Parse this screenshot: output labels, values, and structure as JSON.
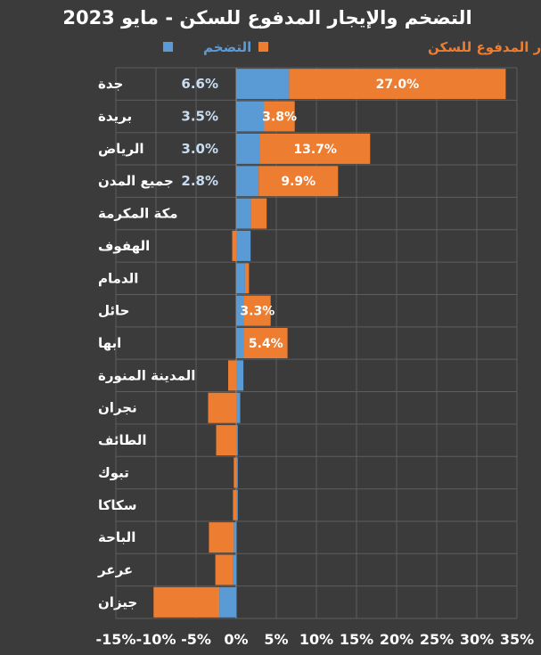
{
  "chart_data": {
    "type": "bar",
    "orientation": "horizontal",
    "stacked": true,
    "title": "التضخم والإيجار المدفوع للسكن - مايو 2023",
    "categories": [
      "جدة",
      "بريدة",
      "الرياض",
      "جميع المدن",
      "مكة المكرمة",
      "الهفوف",
      "الدمام",
      "حائل",
      "ابها",
      "المدينة المنورة",
      "نجران",
      "الطائف",
      "تبوك",
      "سكاكا",
      "الباحة",
      "عرعر",
      "جيزان"
    ],
    "series": [
      {
        "name": "التضخم",
        "color": "#5b9bd5",
        "values": [
          6.6,
          3.5,
          3.0,
          2.8,
          1.8,
          1.8,
          1.1,
          1.0,
          1.0,
          0.9,
          0.5,
          0.2,
          0.2,
          0.2,
          -0.3,
          -0.4,
          -2.1
        ],
        "labels": [
          "6.6%",
          "3.5%",
          "3.0%",
          "2.8%",
          "",
          "",
          "",
          "",
          "",
          "",
          "",
          "",
          "",
          "",
          "",
          "",
          ""
        ]
      },
      {
        "name": "الإيجار المدفوع للسكن",
        "color": "#ed7d31",
        "values": [
          27.0,
          3.8,
          13.7,
          9.9,
          2.0,
          -0.5,
          0.5,
          3.3,
          5.4,
          -1.0,
          -3.5,
          -2.5,
          -0.3,
          -0.4,
          -3.1,
          -2.2,
          -8.2
        ],
        "labels": [
          "27.0%",
          "3.8%",
          "13.7%",
          "9.9%",
          "",
          "",
          "",
          "3.3%",
          "5.4%",
          "",
          "",
          "",
          "",
          "",
          "",
          "",
          ""
        ]
      }
    ],
    "xlim": [
      -15,
      35
    ],
    "xticks": [
      -15,
      -10,
      -5,
      0,
      5,
      10,
      15,
      20,
      25,
      30,
      35
    ],
    "xtick_labels": [
      "-15%",
      "-10%",
      "-5%",
      "0%",
      "5%",
      "10%",
      "15%",
      "20%",
      "25%",
      "30%",
      "35%"
    ],
    "legend": "top",
    "grid": true
  }
}
